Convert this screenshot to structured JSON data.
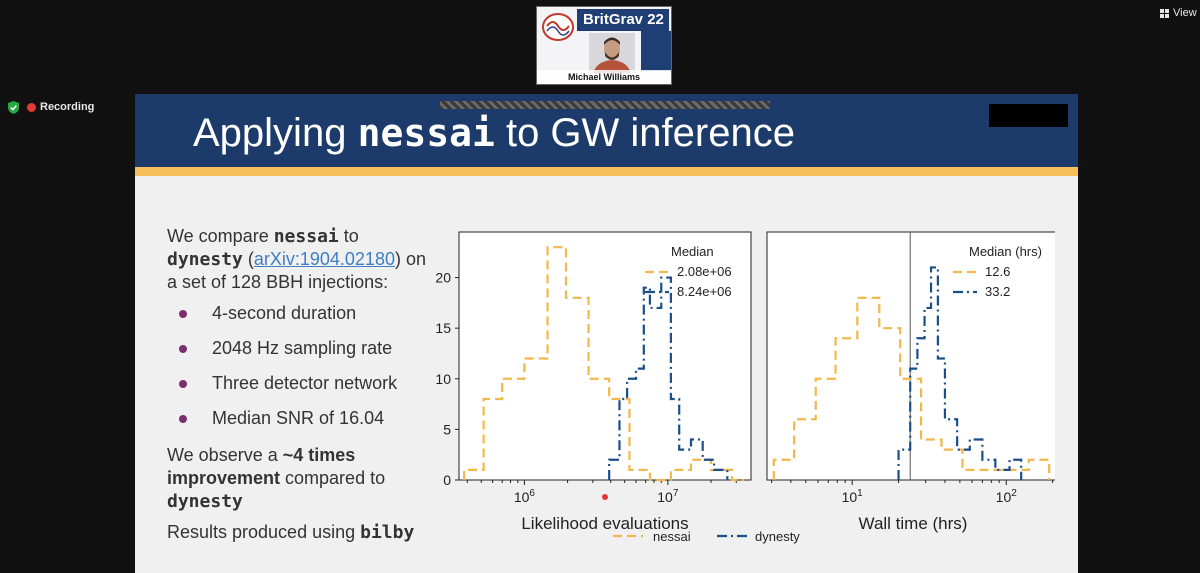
{
  "meeting": {
    "speaker_name": "Michael Williams",
    "conference_brand": "BritGrav 22",
    "recording_label": "Recording",
    "view_label": "View"
  },
  "slide": {
    "title_prefix": "Applying ",
    "title_code": "nessai",
    "title_suffix": " to GW inference",
    "intro": {
      "p1": "We compare ",
      "code1": "nessai",
      "p2": " to ",
      "code2": "dynesty",
      "p3": " (",
      "link": "arXiv:1904.02180",
      "p4": ")",
      "p5": " on a set of 128 BBH injections:"
    },
    "bullets": [
      "4-second duration",
      "2048 Hz sampling rate",
      "Three detector network",
      "Median SNR of 16.04"
    ],
    "observe": {
      "p1": "We observe a ",
      "bold": "~4 times improvement",
      "p2": " compared to ",
      "code": "dynesty"
    },
    "results": {
      "p1": "Results produced using ",
      "code": "bilby"
    },
    "legend": {
      "nessai": "nessai",
      "dynesty": "dynesty"
    }
  },
  "colors": {
    "header": "#1c3b6b",
    "accent": "#f5c05a",
    "nessai": "#f2b84b",
    "dynesty": "#1a4f8a",
    "bullet": "#7b2f6f",
    "link": "#3f7ec4"
  },
  "chart_data": [
    {
      "type": "histogram",
      "xlabel": "Likelihood evaluations",
      "xscale": "log",
      "xlim": [
        350000,
        38000000
      ],
      "ylim": [
        0,
        24.5
      ],
      "yticks": [
        0,
        5,
        10,
        15,
        20
      ],
      "xticks": [
        {
          "value": 1000000,
          "label": "10^6"
        },
        {
          "value": 10000000,
          "label": "10^7"
        }
      ],
      "legend_title": "Median",
      "series": [
        {
          "name": "nessai",
          "median_label": "2.08e+06",
          "style": "dashed",
          "bins": [
            {
              "x0": 380000,
              "x1": 520000,
              "count": 1
            },
            {
              "x0": 520000,
              "x1": 700000,
              "count": 8
            },
            {
              "x0": 700000,
              "x1": 1000000,
              "count": 10
            },
            {
              "x0": 1000000,
              "x1": 1450000,
              "count": 12
            },
            {
              "x0": 1450000,
              "x1": 1950000,
              "count": 23
            },
            {
              "x0": 1950000,
              "x1": 2800000,
              "count": 18
            },
            {
              "x0": 2800000,
              "x1": 3900000,
              "count": 10
            },
            {
              "x0": 3900000,
              "x1": 5400000,
              "count": 8
            },
            {
              "x0": 5400000,
              "x1": 7500000,
              "count": 1
            },
            {
              "x0": 7500000,
              "x1": 10500000,
              "count": 0
            },
            {
              "x0": 10500000,
              "x1": 14500000,
              "count": 1
            },
            {
              "x0": 14500000,
              "x1": 20000000,
              "count": 2
            },
            {
              "x0": 20000000,
              "x1": 28000000,
              "count": 1
            },
            {
              "x0": 28000000,
              "x1": 34000000,
              "count": 0
            }
          ]
        },
        {
          "name": "dynesty",
          "median_label": "8.24e+06",
          "style": "dashdot",
          "bins": [
            {
              "x0": 3900000,
              "x1": 4600000,
              "count": 2
            },
            {
              "x0": 4600000,
              "x1": 5200000,
              "count": 8
            },
            {
              "x0": 5200000,
              "x1": 6000000,
              "count": 10
            },
            {
              "x0": 6000000,
              "x1": 6800000,
              "count": 11
            },
            {
              "x0": 6800000,
              "x1": 7500000,
              "count": 19
            },
            {
              "x0": 7500000,
              "x1": 9000000,
              "count": 17
            },
            {
              "x0": 9000000,
              "x1": 10500000,
              "count": 20
            },
            {
              "x0": 10500000,
              "x1": 12000000,
              "count": 8
            },
            {
              "x0": 12000000,
              "x1": 14500000,
              "count": 3
            },
            {
              "x0": 14500000,
              "x1": 17500000,
              "count": 4
            },
            {
              "x0": 17500000,
              "x1": 21000000,
              "count": 2
            },
            {
              "x0": 21000000,
              "x1": 26000000,
              "count": 1
            }
          ]
        }
      ]
    },
    {
      "type": "histogram",
      "xlabel": "Wall time (hrs)",
      "xscale": "log",
      "xlim": [
        2.8,
        220
      ],
      "ylim": [
        0,
        24.5
      ],
      "yticks": [],
      "xticks": [
        {
          "value": 10,
          "label": "10^1"
        },
        {
          "value": 100,
          "label": "10^2"
        }
      ],
      "vline": 23.8,
      "legend_title": "Median (hrs)",
      "series": [
        {
          "name": "nessai",
          "median_label": "12.6",
          "style": "dashed",
          "bins": [
            {
              "x0": 3.1,
              "x1": 4.2,
              "count": 2
            },
            {
              "x0": 4.2,
              "x1": 5.8,
              "count": 6
            },
            {
              "x0": 5.8,
              "x1": 7.8,
              "count": 10
            },
            {
              "x0": 7.8,
              "x1": 10.8,
              "count": 14
            },
            {
              "x0": 10.8,
              "x1": 15.0,
              "count": 18
            },
            {
              "x0": 15.0,
              "x1": 20.5,
              "count": 15
            },
            {
              "x0": 20.5,
              "x1": 28.0,
              "count": 10
            },
            {
              "x0": 28.0,
              "x1": 38.0,
              "count": 4
            },
            {
              "x0": 38.0,
              "x1": 52.0,
              "count": 3
            },
            {
              "x0": 52.0,
              "x1": 72.0,
              "count": 1
            },
            {
              "x0": 72.0,
              "x1": 100.0,
              "count": 1
            },
            {
              "x0": 100.0,
              "x1": 140.0,
              "count": 1
            },
            {
              "x0": 140.0,
              "x1": 190.0,
              "count": 2
            }
          ]
        },
        {
          "name": "dynesty",
          "median_label": "33.2",
          "style": "dashdot",
          "bins": [
            {
              "x0": 20.0,
              "x1": 23.8,
              "count": 3
            },
            {
              "x0": 23.8,
              "x1": 26.5,
              "count": 11
            },
            {
              "x0": 26.5,
              "x1": 29.5,
              "count": 14
            },
            {
              "x0": 29.5,
              "x1": 32.5,
              "count": 17
            },
            {
              "x0": 32.5,
              "x1": 36.0,
              "count": 21
            },
            {
              "x0": 36.0,
              "x1": 40.0,
              "count": 12
            },
            {
              "x0": 40.0,
              "x1": 48.0,
              "count": 6
            },
            {
              "x0": 48.0,
              "x1": 58.0,
              "count": 3
            },
            {
              "x0": 58.0,
              "x1": 70.0,
              "count": 4
            },
            {
              "x0": 70.0,
              "x1": 85.0,
              "count": 2
            },
            {
              "x0": 85.0,
              "x1": 105.0,
              "count": 1
            },
            {
              "x0": 105.0,
              "x1": 125.0,
              "count": 2
            }
          ]
        }
      ]
    }
  ]
}
